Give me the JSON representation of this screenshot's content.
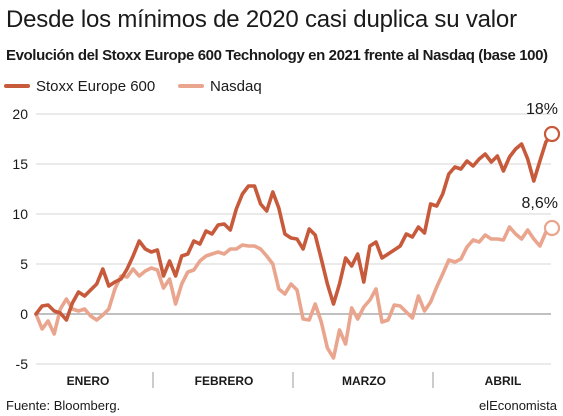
{
  "title": "Desde los mínimos de 2020 casi duplica su valor",
  "subtitle": "Evolución del Stoxx Europe 600 Technology en 2021 frente al Nasdaq (base 100)",
  "source": "Fuente: Bloomberg.",
  "brand": "elEconomista",
  "chart_data": {
    "type": "line",
    "ylim": [
      -5,
      20
    ],
    "yticks": [
      -5,
      0,
      5,
      10,
      15,
      20
    ],
    "months": [
      "ENERO",
      "FEBRERO",
      "MARZO",
      "ABRIL"
    ],
    "grid": true,
    "legend": "top-left",
    "series": [
      {
        "name": "Stoxx Europe 600",
        "color": "#c85a3c",
        "end_label": "18%",
        "values": [
          0,
          0.8,
          0.9,
          0.3,
          0.1,
          -0.6,
          1.1,
          2.2,
          1.8,
          2.4,
          3.0,
          4.5,
          2.8,
          3.2,
          3.5,
          4.5,
          5.8,
          7.3,
          6.5,
          6.2,
          6.4,
          3.8,
          5.3,
          3.8,
          5.8,
          6.0,
          7.3,
          7.0,
          8.3,
          8.0,
          8.9,
          9.0,
          8.4,
          10.5,
          12.0,
          12.8,
          12.8,
          11.0,
          10.3,
          12.2,
          10.6,
          8.0,
          7.6,
          7.5,
          6.5,
          8.5,
          7.9,
          5.5,
          3.0,
          1.0,
          3.0,
          5.6,
          4.8,
          6.0,
          3.2,
          6.8,
          7.2,
          5.6,
          6.0,
          6.4,
          6.8,
          8.0,
          7.7,
          8.7,
          8.1,
          11.0,
          10.8,
          12.0,
          14.0,
          14.7,
          14.5,
          15.3,
          14.8,
          15.5,
          16.0,
          15.2,
          15.8,
          14.3,
          15.7,
          16.5,
          17.0,
          15.5,
          13.3,
          15.3,
          17.2,
          18.0
        ]
      },
      {
        "name": "Nasdaq",
        "color": "#eaa58e",
        "end_label": "8,6%",
        "values": [
          0,
          -1.5,
          -0.7,
          -2.0,
          0.5,
          1.5,
          0.5,
          0.3,
          0.5,
          -0.2,
          -0.6,
          -0.1,
          0.5,
          2.5,
          3.8,
          3.7,
          4.5,
          3.8,
          4.3,
          4.6,
          4.4,
          2.6,
          3.5,
          1.0,
          3.0,
          4.2,
          4.4,
          5.3,
          5.8,
          6.0,
          6.2,
          6.0,
          6.5,
          6.5,
          6.9,
          6.8,
          6.8,
          6.5,
          5.8,
          5.0,
          2.5,
          2.0,
          3.0,
          2.4,
          -0.5,
          -0.6,
          1.0,
          -0.8,
          -3.4,
          -4.4,
          -1.6,
          -3.0,
          0.6,
          -0.5,
          0.7,
          1.4,
          2.5,
          -0.8,
          -0.6,
          0.9,
          0.8,
          0.2,
          -0.4,
          1.8,
          0.3,
          1.2,
          2.7,
          4.0,
          5.4,
          5.2,
          5.5,
          6.7,
          7.4,
          7.2,
          7.9,
          7.5,
          7.5,
          7.4,
          8.7,
          8.0,
          7.5,
          8.4,
          7.5,
          6.8,
          8.2,
          8.6
        ]
      }
    ]
  }
}
